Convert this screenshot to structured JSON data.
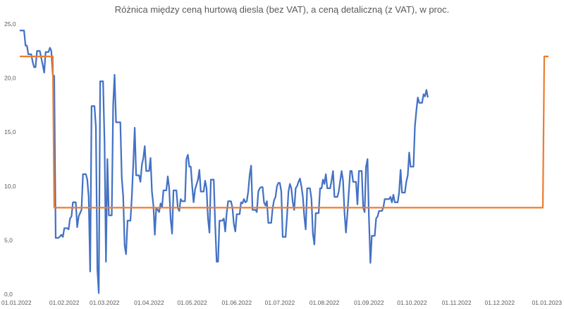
{
  "chart_data": {
    "type": "line",
    "title": "Różnica między ceną hurtową diesla (bez VAT), a ceną detaliczną (z VAT), w proc.",
    "xlabel": "",
    "ylabel": "",
    "ylim": [
      0,
      25
    ],
    "y_ticks": [
      "0,0",
      "5,0",
      "10,0",
      "15,0",
      "20,0",
      "25,0"
    ],
    "y_tick_values": [
      0,
      5,
      10,
      15,
      20,
      25
    ],
    "xlim": [
      "2022-01-01",
      "2023-01-01"
    ],
    "x_ticks": [
      "01.01.2022",
      "01.02.2022",
      "01.03.2022",
      "01.04.2022",
      "01.05.2022",
      "01.06.2022",
      "01.07.2022",
      "01.08.2022",
      "01.09.2022",
      "01.10.2022",
      "01.11.2022",
      "01.12.2022",
      "01.01.2023"
    ],
    "x_tick_dates": [
      "2022-01-01",
      "2022-02-01",
      "2022-03-01",
      "2022-04-01",
      "2022-05-01",
      "2022-06-01",
      "2022-07-01",
      "2022-08-01",
      "2022-09-01",
      "2022-10-01",
      "2022-11-01",
      "2022-12-01",
      "2023-01-01"
    ],
    "grid": false,
    "legend": "none",
    "series": [
      {
        "color": "#4472C4",
        "points": [
          [
            "2022-01-01",
            24.4
          ],
          [
            "2022-01-04",
            24.4
          ],
          [
            "2022-01-05",
            23.0
          ],
          [
            "2022-01-06",
            23.0
          ],
          [
            "2022-01-07",
            22.2
          ],
          [
            "2022-01-09",
            22.2
          ],
          [
            "2022-01-10",
            21.5
          ],
          [
            "2022-01-11",
            21.0
          ],
          [
            "2022-01-12",
            21.0
          ],
          [
            "2022-01-13",
            22.5
          ],
          [
            "2022-01-15",
            22.5
          ],
          [
            "2022-01-17",
            21.2
          ],
          [
            "2022-01-18",
            20.5
          ],
          [
            "2022-01-19",
            22.4
          ],
          [
            "2022-01-21",
            22.4
          ],
          [
            "2022-01-22",
            22.8
          ],
          [
            "2022-01-23",
            22.5
          ],
          [
            "2022-01-24",
            20.3
          ],
          [
            "2022-01-25",
            20.2
          ],
          [
            "2022-01-26",
            5.2
          ],
          [
            "2022-01-28",
            5.2
          ],
          [
            "2022-01-30",
            5.5
          ],
          [
            "2022-01-31",
            5.3
          ],
          [
            "2022-02-01",
            6.1
          ],
          [
            "2022-02-03",
            6.1
          ],
          [
            "2022-02-04",
            6.0
          ],
          [
            "2022-02-05",
            7.0
          ],
          [
            "2022-02-06",
            7.2
          ],
          [
            "2022-02-07",
            8.5
          ],
          [
            "2022-02-09",
            8.5
          ],
          [
            "2022-02-10",
            6.2
          ],
          [
            "2022-02-11",
            7.2
          ],
          [
            "2022-02-13",
            7.8
          ],
          [
            "2022-02-14",
            11.1
          ],
          [
            "2022-02-16",
            11.1
          ],
          [
            "2022-02-17",
            10.6
          ],
          [
            "2022-02-18",
            9.0
          ],
          [
            "2022-02-19",
            2.1
          ],
          [
            "2022-02-20",
            17.4
          ],
          [
            "2022-02-22",
            17.4
          ],
          [
            "2022-02-23",
            15.5
          ],
          [
            "2022-02-24",
            2.3
          ],
          [
            "2022-02-25",
            0.1
          ],
          [
            "2022-02-26",
            19.7
          ],
          [
            "2022-02-28",
            19.7
          ],
          [
            "2022-03-01",
            14.0
          ],
          [
            "2022-03-02",
            3.0
          ],
          [
            "2022-03-03",
            12.5
          ],
          [
            "2022-03-04",
            7.3
          ],
          [
            "2022-03-06",
            7.3
          ],
          [
            "2022-03-07",
            17.5
          ],
          [
            "2022-03-08",
            20.3
          ],
          [
            "2022-03-09",
            15.9
          ],
          [
            "2022-03-12",
            15.9
          ],
          [
            "2022-03-13",
            10.8
          ],
          [
            "2022-03-14",
            9.0
          ],
          [
            "2022-03-15",
            4.5
          ],
          [
            "2022-03-16",
            3.7
          ],
          [
            "2022-03-17",
            6.8
          ],
          [
            "2022-03-19",
            6.8
          ],
          [
            "2022-03-20",
            9.0
          ],
          [
            "2022-03-21",
            12.0
          ],
          [
            "2022-03-22",
            15.4
          ],
          [
            "2022-03-23",
            11.0
          ],
          [
            "2022-03-25",
            11.0
          ],
          [
            "2022-03-26",
            10.4
          ],
          [
            "2022-03-27",
            12.0
          ],
          [
            "2022-03-28",
            12.6
          ],
          [
            "2022-03-29",
            13.7
          ],
          [
            "2022-03-30",
            11.4
          ],
          [
            "2022-04-01",
            11.4
          ],
          [
            "2022-04-02",
            12.6
          ],
          [
            "2022-04-03",
            9.5
          ],
          [
            "2022-04-04",
            8.2
          ],
          [
            "2022-04-05",
            5.5
          ],
          [
            "2022-04-06",
            8.0
          ],
          [
            "2022-04-08",
            7.6
          ],
          [
            "2022-04-09",
            8.4
          ],
          [
            "2022-04-10",
            8.0
          ],
          [
            "2022-04-11",
            9.6
          ],
          [
            "2022-04-13",
            9.6
          ],
          [
            "2022-04-14",
            10.9
          ],
          [
            "2022-04-15",
            9.8
          ],
          [
            "2022-04-16",
            7.0
          ],
          [
            "2022-04-17",
            5.6
          ],
          [
            "2022-04-18",
            9.6
          ],
          [
            "2022-04-20",
            9.6
          ],
          [
            "2022-04-21",
            8.0
          ],
          [
            "2022-04-22",
            7.7
          ],
          [
            "2022-04-23",
            8.8
          ],
          [
            "2022-04-24",
            8.6
          ],
          [
            "2022-04-26",
            8.6
          ],
          [
            "2022-04-27",
            12.5
          ],
          [
            "2022-04-28",
            12.9
          ],
          [
            "2022-04-29",
            11.8
          ],
          [
            "2022-04-30",
            11.8
          ],
          [
            "2022-05-01",
            10.0
          ],
          [
            "2022-05-02",
            8.5
          ],
          [
            "2022-05-03",
            9.7
          ],
          [
            "2022-05-05",
            10.6
          ],
          [
            "2022-05-06",
            11.5
          ],
          [
            "2022-05-07",
            9.5
          ],
          [
            "2022-05-09",
            9.5
          ],
          [
            "2022-05-10",
            10.5
          ],
          [
            "2022-05-11",
            9.8
          ],
          [
            "2022-05-12",
            7.0
          ],
          [
            "2022-05-13",
            5.7
          ],
          [
            "2022-05-14",
            10.6
          ],
          [
            "2022-05-16",
            10.6
          ],
          [
            "2022-05-17",
            6.5
          ],
          [
            "2022-05-18",
            3.0
          ],
          [
            "2022-05-19",
            3.0
          ],
          [
            "2022-05-20",
            6.8
          ],
          [
            "2022-05-22",
            6.8
          ],
          [
            "2022-05-23",
            7.0
          ],
          [
            "2022-05-24",
            5.8
          ],
          [
            "2022-05-25",
            7.5
          ],
          [
            "2022-05-26",
            8.6
          ],
          [
            "2022-05-28",
            8.6
          ],
          [
            "2022-05-29",
            8.0
          ],
          [
            "2022-05-30",
            6.5
          ],
          [
            "2022-05-31",
            5.8
          ],
          [
            "2022-06-01",
            7.4
          ],
          [
            "2022-06-03",
            7.4
          ],
          [
            "2022-06-04",
            8.5
          ],
          [
            "2022-06-05",
            8.4
          ],
          [
            "2022-06-06",
            8.8
          ],
          [
            "2022-06-07",
            8.5
          ],
          [
            "2022-06-08",
            8.6
          ],
          [
            "2022-06-09",
            9.5
          ],
          [
            "2022-06-10",
            11.0
          ],
          [
            "2022-06-11",
            11.9
          ],
          [
            "2022-06-12",
            7.8
          ],
          [
            "2022-06-14",
            7.8
          ],
          [
            "2022-06-15",
            7.6
          ],
          [
            "2022-06-16",
            9.5
          ],
          [
            "2022-06-17",
            9.8
          ],
          [
            "2022-06-18",
            9.9
          ],
          [
            "2022-06-19",
            9.9
          ],
          [
            "2022-06-20",
            8.5
          ],
          [
            "2022-06-21",
            8.2
          ],
          [
            "2022-06-22",
            8.6
          ],
          [
            "2022-06-23",
            6.6
          ],
          [
            "2022-06-25",
            6.6
          ],
          [
            "2022-06-26",
            8.0
          ],
          [
            "2022-06-27",
            8.7
          ],
          [
            "2022-06-28",
            9.0
          ],
          [
            "2022-06-29",
            10.0
          ],
          [
            "2022-06-30",
            10.3
          ],
          [
            "2022-07-01",
            10.3
          ],
          [
            "2022-07-02",
            9.5
          ],
          [
            "2022-07-03",
            5.3
          ],
          [
            "2022-07-05",
            5.3
          ],
          [
            "2022-07-06",
            7.2
          ],
          [
            "2022-07-07",
            9.5
          ],
          [
            "2022-07-08",
            10.2
          ],
          [
            "2022-07-09",
            9.8
          ],
          [
            "2022-07-10",
            8.5
          ],
          [
            "2022-07-11",
            7.8
          ],
          [
            "2022-07-12",
            9.8
          ],
          [
            "2022-07-13",
            10.0
          ],
          [
            "2022-07-14",
            10.4
          ],
          [
            "2022-07-15",
            10.7
          ],
          [
            "2022-07-16",
            10.0
          ],
          [
            "2022-07-17",
            9.0
          ],
          [
            "2022-07-18",
            7.2
          ],
          [
            "2022-07-19",
            6.0
          ],
          [
            "2022-07-20",
            9.8
          ],
          [
            "2022-07-22",
            9.8
          ],
          [
            "2022-07-23",
            8.8
          ],
          [
            "2022-07-24",
            5.6
          ],
          [
            "2022-07-25",
            4.6
          ],
          [
            "2022-07-26",
            7.5
          ],
          [
            "2022-07-28",
            7.5
          ],
          [
            "2022-07-29",
            9.8
          ],
          [
            "2022-07-30",
            9.8
          ],
          [
            "2022-07-31",
            10.6
          ],
          [
            "2022-08-01",
            10.2
          ],
          [
            "2022-08-02",
            11.1
          ],
          [
            "2022-08-03",
            9.8
          ],
          [
            "2022-08-05",
            9.8
          ],
          [
            "2022-08-06",
            10.5
          ],
          [
            "2022-08-07",
            11.4
          ],
          [
            "2022-08-08",
            9.0
          ],
          [
            "2022-08-10",
            9.0
          ],
          [
            "2022-08-11",
            9.5
          ],
          [
            "2022-08-12",
            10.5
          ],
          [
            "2022-08-13",
            11.4
          ],
          [
            "2022-08-14",
            10.5
          ],
          [
            "2022-08-15",
            7.5
          ],
          [
            "2022-08-16",
            5.7
          ],
          [
            "2022-08-17",
            7.4
          ],
          [
            "2022-08-19",
            11.4
          ],
          [
            "2022-08-20",
            11.4
          ],
          [
            "2022-08-21",
            10.4
          ],
          [
            "2022-08-23",
            10.4
          ],
          [
            "2022-08-24",
            8.3
          ],
          [
            "2022-08-25",
            11.4
          ],
          [
            "2022-08-27",
            11.4
          ],
          [
            "2022-08-28",
            8.0
          ],
          [
            "2022-08-29",
            7.6
          ],
          [
            "2022-08-30",
            11.8
          ],
          [
            "2022-08-31",
            12.5
          ],
          [
            "2022-09-01",
            7.1
          ],
          [
            "2022-09-02",
            2.9
          ],
          [
            "2022-09-03",
            5.4
          ],
          [
            "2022-09-05",
            5.4
          ],
          [
            "2022-09-06",
            7.0
          ],
          [
            "2022-09-07",
            7.2
          ],
          [
            "2022-09-08",
            7.7
          ],
          [
            "2022-09-10",
            7.7
          ],
          [
            "2022-09-11",
            8.0
          ],
          [
            "2022-09-12",
            8.8
          ],
          [
            "2022-09-14",
            8.8
          ],
          [
            "2022-09-15",
            8.8
          ],
          [
            "2022-09-16",
            9.0
          ],
          [
            "2022-09-17",
            8.5
          ],
          [
            "2022-09-18",
            9.2
          ],
          [
            "2022-09-19",
            8.5
          ],
          [
            "2022-09-21",
            8.5
          ],
          [
            "2022-09-22",
            9.4
          ],
          [
            "2022-09-23",
            11.5
          ],
          [
            "2022-09-24",
            9.4
          ],
          [
            "2022-09-26",
            9.4
          ],
          [
            "2022-09-27",
            10.4
          ],
          [
            "2022-09-28",
            11.0
          ],
          [
            "2022-09-29",
            13.1
          ],
          [
            "2022-09-30",
            11.8
          ],
          [
            "2022-10-02",
            11.8
          ],
          [
            "2022-10-03",
            15.5
          ],
          [
            "2022-10-04",
            17.0
          ],
          [
            "2022-10-05",
            18.2
          ],
          [
            "2022-10-06",
            17.7
          ],
          [
            "2022-10-08",
            17.7
          ],
          [
            "2022-10-09",
            18.5
          ],
          [
            "2022-10-10",
            18.3
          ],
          [
            "2022-10-11",
            18.9
          ],
          [
            "2022-10-12",
            18.2
          ]
        ]
      },
      {
        "color": "#ED7D31",
        "points": [
          [
            "2022-01-01",
            22.0
          ],
          [
            "2022-01-24",
            22.0
          ],
          [
            "2022-01-25",
            8.0
          ],
          [
            "2022-12-31",
            8.0
          ],
          [
            "2023-01-01",
            22.0
          ],
          [
            "2023-01-04",
            22.0
          ]
        ]
      }
    ]
  }
}
